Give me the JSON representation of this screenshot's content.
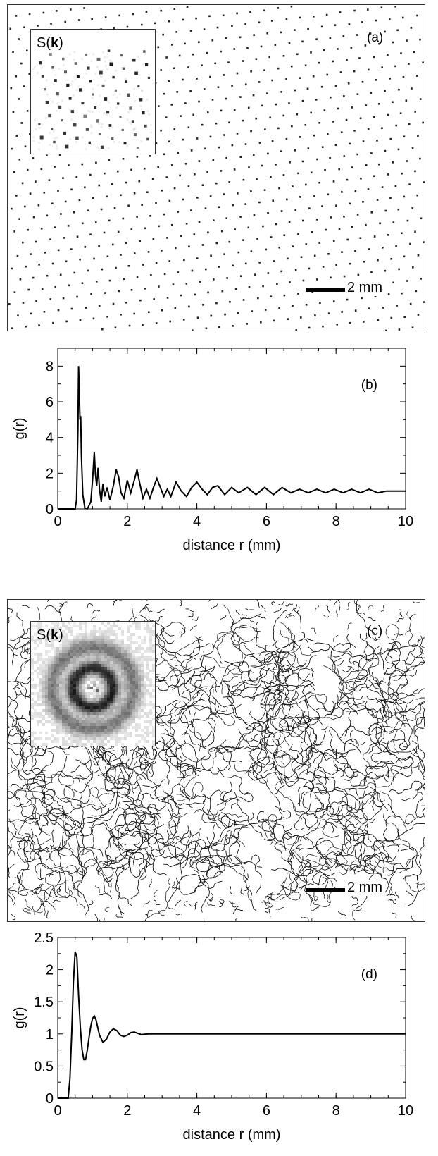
{
  "panels": {
    "a": {
      "letter": "(a)",
      "inset_label_prefix": "S(",
      "inset_label_bold": "k",
      "inset_label_suffix": ")",
      "scale_label": "2 mm"
    },
    "c": {
      "letter": "(c)",
      "inset_label_prefix": "S(",
      "inset_label_bold": "k",
      "inset_label_suffix": ")",
      "scale_label": "2 mm"
    }
  },
  "chart_data": [
    {
      "id": "b",
      "type": "line",
      "panel_label": "(b)",
      "xlabel": "distance r (mm)",
      "ylabel": "g(r)",
      "xlim": [
        0,
        10
      ],
      "ylim": [
        0,
        9
      ],
      "xticks": [
        0,
        2,
        4,
        6,
        8,
        10
      ],
      "yticks": [
        0,
        2,
        4,
        6,
        8
      ],
      "grid": false,
      "series": [
        {
          "x": [
            0,
            0.5,
            0.54,
            0.58,
            0.6,
            0.62,
            0.64,
            0.66,
            0.68,
            0.72,
            0.78,
            0.85,
            0.95,
            1.0,
            1.05,
            1.08,
            1.12,
            1.16,
            1.2,
            1.25,
            1.3,
            1.35,
            1.42,
            1.5,
            1.6,
            1.68,
            1.75,
            1.82,
            1.9,
            2.0,
            2.1,
            2.2,
            2.28,
            2.35,
            2.45,
            2.55,
            2.65,
            2.75,
            2.85,
            2.95,
            3.05,
            3.15,
            3.25,
            3.4,
            3.55,
            3.7,
            3.85,
            4.0,
            4.15,
            4.3,
            4.45,
            4.6,
            4.8,
            5.0,
            5.2,
            5.45,
            5.7,
            5.95,
            6.2,
            6.45,
            6.7,
            6.95,
            7.2,
            7.45,
            7.7,
            7.95,
            8.2,
            8.45,
            8.7,
            8.95,
            9.2,
            9.45,
            9.7,
            10.0
          ],
          "y": [
            0,
            0,
            0.5,
            4.5,
            8.0,
            6.5,
            5.0,
            5.2,
            3.0,
            0.8,
            0.05,
            0.0,
            0.4,
            1.6,
            3.2,
            2.0,
            1.3,
            2.3,
            1.1,
            0.4,
            1.4,
            0.7,
            1.2,
            0.5,
            1.3,
            2.2,
            1.8,
            0.9,
            0.6,
            1.6,
            0.9,
            1.6,
            2.2,
            1.5,
            0.6,
            1.1,
            0.6,
            1.2,
            1.7,
            1.2,
            0.7,
            1.1,
            0.7,
            1.5,
            1.0,
            0.7,
            1.2,
            1.5,
            1.1,
            0.8,
            1.2,
            1.3,
            0.8,
            1.2,
            0.9,
            1.2,
            0.8,
            1.2,
            0.8,
            1.2,
            0.9,
            1.1,
            0.9,
            1.1,
            0.9,
            1.1,
            0.9,
            1.1,
            0.9,
            1.1,
            0.9,
            1.0,
            1.0,
            1.0
          ]
        }
      ]
    },
    {
      "id": "d",
      "type": "line",
      "panel_label": "(d)",
      "xlabel": "distance r (mm)",
      "ylabel": "g(r)",
      "xlim": [
        0,
        10
      ],
      "ylim": [
        0,
        2.5
      ],
      "xticks": [
        0,
        2,
        4,
        6,
        8,
        10
      ],
      "yticks": [
        0,
        0.5,
        1,
        1.5,
        2,
        2.5
      ],
      "grid": false,
      "series": [
        {
          "x": [
            0,
            0.3,
            0.35,
            0.4,
            0.45,
            0.5,
            0.55,
            0.6,
            0.65,
            0.7,
            0.75,
            0.8,
            0.85,
            0.9,
            0.95,
            1.0,
            1.05,
            1.1,
            1.15,
            1.2,
            1.3,
            1.4,
            1.5,
            1.6,
            1.7,
            1.8,
            1.9,
            2.0,
            2.1,
            2.2,
            2.3,
            2.4,
            2.6,
            2.8,
            3.0,
            3.5,
            4.0,
            5.0,
            6.0,
            7.0,
            8.0,
            9.0,
            10.0
          ],
          "y": [
            0,
            0,
            0.3,
            1.0,
            1.8,
            2.28,
            2.2,
            1.6,
            1.1,
            0.75,
            0.6,
            0.6,
            0.75,
            0.95,
            1.12,
            1.24,
            1.28,
            1.22,
            1.1,
            0.98,
            0.87,
            0.92,
            1.03,
            1.08,
            1.05,
            0.98,
            0.96,
            0.98,
            1.02,
            1.03,
            1.01,
            0.99,
            1.0,
            1.0,
            1.0,
            1.0,
            1.0,
            1.0,
            1.0,
            1.0,
            1.0,
            1.0,
            1.0
          ]
        }
      ]
    }
  ]
}
